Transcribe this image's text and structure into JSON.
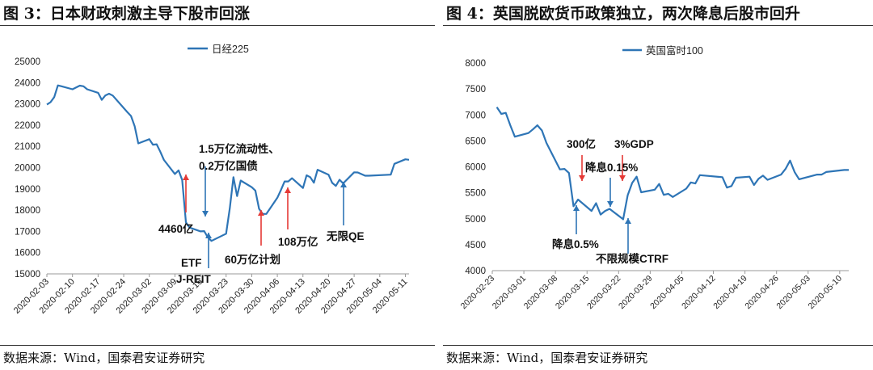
{
  "figures": [
    {
      "title": "图 3：日本财政刺激主导下股市回涨",
      "source": "数据来源：Wind，国泰君安证券研究",
      "chart_data": {
        "type": "line",
        "title": "",
        "xlabel": "",
        "ylabel": "",
        "ylim": [
          15000,
          25000
        ],
        "yticks": [
          15000,
          16000,
          17000,
          18000,
          19000,
          20000,
          21000,
          22000,
          23000,
          24000,
          25000
        ],
        "xlim": [
          "2020-02-03",
          "2020-05-12"
        ],
        "xticks": [
          "2020-02-03",
          "2020-02-10",
          "2020-02-17",
          "2020-02-24",
          "2020-03-02",
          "2020-03-09",
          "2020-03-16",
          "2020-03-23",
          "2020-03-30",
          "2020-04-06",
          "2020-04-13",
          "2020-04-20",
          "2020-04-27",
          "2020-05-04",
          "2020-05-11"
        ],
        "grid": false,
        "legend": "top",
        "line_color": "#2e75b6",
        "series": [
          {
            "name": "日经225",
            "x": [
              "2020-02-03",
              "2020-02-04",
              "2020-02-05",
              "2020-02-06",
              "2020-02-07",
              "2020-02-10",
              "2020-02-12",
              "2020-02-13",
              "2020-02-14",
              "2020-02-17",
              "2020-02-18",
              "2020-02-19",
              "2020-02-20",
              "2020-02-21",
              "2020-02-25",
              "2020-02-26",
              "2020-02-27",
              "2020-02-28",
              "2020-03-02",
              "2020-03-03",
              "2020-03-04",
              "2020-03-05",
              "2020-03-06",
              "2020-03-09",
              "2020-03-10",
              "2020-03-11",
              "2020-03-12",
              "2020-03-13",
              "2020-03-16",
              "2020-03-17",
              "2020-03-18",
              "2020-03-19",
              "2020-03-23",
              "2020-03-24",
              "2020-03-25",
              "2020-03-26",
              "2020-03-27",
              "2020-03-30",
              "2020-03-31",
              "2020-04-01",
              "2020-04-02",
              "2020-04-03",
              "2020-04-06",
              "2020-04-07",
              "2020-04-08",
              "2020-04-09",
              "2020-04-10",
              "2020-04-13",
              "2020-04-14",
              "2020-04-15",
              "2020-04-16",
              "2020-04-17",
              "2020-04-20",
              "2020-04-21",
              "2020-04-22",
              "2020-04-23",
              "2020-04-24",
              "2020-04-27",
              "2020-04-28",
              "2020-04-30",
              "2020-05-01",
              "2020-05-07",
              "2020-05-08",
              "2020-05-11",
              "2020-05-12"
            ],
            "values": [
              22970,
              23080,
              23320,
              23870,
              23830,
              23690,
              23860,
              23830,
              23690,
              23520,
              23190,
              23400,
              23480,
              23390,
              22610,
              22430,
              21950,
              21140,
              21340,
              21080,
              21100,
              20750,
              20360,
              19700,
              19870,
              19420,
              17430,
              17180,
              17000,
              17010,
              16720,
              16550,
              16890,
              18090,
              19550,
              18660,
              19390,
              19080,
              18920,
              18060,
              17820,
              17820,
              18580,
              18950,
              19350,
              19350,
              19500,
              19040,
              19640,
              19550,
              19290,
              19900,
              19670,
              19280,
              19140,
              19430,
              19260,
              19780,
              19770,
              19620,
              19620,
              19670,
              20180,
              20390,
              20370
            ]
          }
        ],
        "annotations": [
          {
            "text": "1.5万亿流动性、",
            "color": "#2e75b6",
            "arrow": "down",
            "x": "2020-03-13",
            "y": 17180
          },
          {
            "text": "0.2万亿国债"
          },
          {
            "text": "4460亿",
            "color": "#e53935",
            "arrow": "up",
            "x": "2020-03-09",
            "y": 19700
          },
          {
            "text": "ETF",
            "color": "#2e75b6",
            "arrow": "up",
            "x": "2020-03-17",
            "y": 16720
          },
          {
            "text": "J-REIT"
          },
          {
            "text": "60万亿计划",
            "color": "#e53935",
            "arrow": "up",
            "x": "2020-04-07",
            "y": 17820
          },
          {
            "text": "108万亿",
            "color": "#e53935",
            "arrow": "up",
            "x": "2020-04-07",
            "y": 18580
          },
          {
            "text": "无限QE",
            "color": "#2e75b6",
            "arrow": "up",
            "x": "2020-04-27",
            "y": 19140
          }
        ]
      }
    },
    {
      "title": "图 4：英国脱欧货币政策独立，两次降息后股市回升",
      "source": "数据来源：Wind，国泰君安证券研究",
      "chart_data": {
        "type": "line",
        "title": "",
        "xlabel": "",
        "ylabel": "",
        "ylim": [
          4000,
          8000
        ],
        "yticks": [
          4000,
          4500,
          5000,
          5500,
          6000,
          6500,
          7000,
          7500,
          8000
        ],
        "xlim": [
          "2020-02-23",
          "2020-05-12"
        ],
        "xticks": [
          "2020-02-23",
          "2020-03-01",
          "2020-03-08",
          "2020-03-15",
          "2020-03-22",
          "2020-03-29",
          "2020-04-05",
          "2020-04-12",
          "2020-04-19",
          "2020-04-26",
          "2020-05-03",
          "2020-05-10"
        ],
        "grid": false,
        "legend": "top",
        "line_color": "#2e75b6",
        "series": [
          {
            "name": "英国富时100",
            "x": [
              "2020-02-24",
              "2020-02-25",
              "2020-02-26",
              "2020-02-27",
              "2020-02-28",
              "2020-03-02",
              "2020-03-03",
              "2020-03-04",
              "2020-03-05",
              "2020-03-06",
              "2020-03-09",
              "2020-03-10",
              "2020-03-11",
              "2020-03-12",
              "2020-03-13",
              "2020-03-16",
              "2020-03-17",
              "2020-03-18",
              "2020-03-19",
              "2020-03-20",
              "2020-03-23",
              "2020-03-24",
              "2020-03-25",
              "2020-03-26",
              "2020-03-27",
              "2020-03-30",
              "2020-03-31",
              "2020-04-01",
              "2020-04-02",
              "2020-04-03",
              "2020-04-06",
              "2020-04-07",
              "2020-04-08",
              "2020-04-09",
              "2020-04-14",
              "2020-04-15",
              "2020-04-16",
              "2020-04-17",
              "2020-04-20",
              "2020-04-21",
              "2020-04-22",
              "2020-04-23",
              "2020-04-24",
              "2020-04-27",
              "2020-04-28",
              "2020-04-29",
              "2020-04-30",
              "2020-05-01",
              "2020-05-05",
              "2020-05-06",
              "2020-05-07",
              "2020-05-11",
              "2020-05-12"
            ],
            "values": [
              7150,
              7020,
              7040,
              6800,
              6580,
              6650,
              6720,
              6800,
              6700,
              6460,
              5950,
              5960,
              5880,
              5240,
              5370,
              5150,
              5300,
              5080,
              5150,
              5190,
              4990,
              5450,
              5690,
              5810,
              5510,
              5560,
              5670,
              5460,
              5480,
              5420,
              5580,
              5700,
              5680,
              5840,
              5800,
              5600,
              5630,
              5790,
              5810,
              5650,
              5770,
              5830,
              5750,
              5850,
              5960,
              6120,
              5900,
              5760,
              5850,
              5850,
              5900,
              5940,
              5940
            ]
          }
        ],
        "annotations": [
          {
            "text": "300亿",
            "color": "#e53935",
            "arrow": "down",
            "x": "2020-03-11",
            "y": 5880
          },
          {
            "text": "3%GDP",
            "color": "#e53935",
            "arrow": "down",
            "x": "2020-03-24",
            "y": 5450
          },
          {
            "text": "降息0.15%",
            "color": "#2e75b6",
            "arrow": "down",
            "x": "2020-03-19",
            "y": 5150
          },
          {
            "text": "降息0.5%",
            "color": "#2e75b6",
            "arrow": "up",
            "x": "2020-03-11",
            "y": 5240
          },
          {
            "text": "不限规模CTRF",
            "color": "#2e75b6",
            "arrow": "up",
            "x": "2020-03-23",
            "y": 4990
          }
        ]
      }
    }
  ]
}
